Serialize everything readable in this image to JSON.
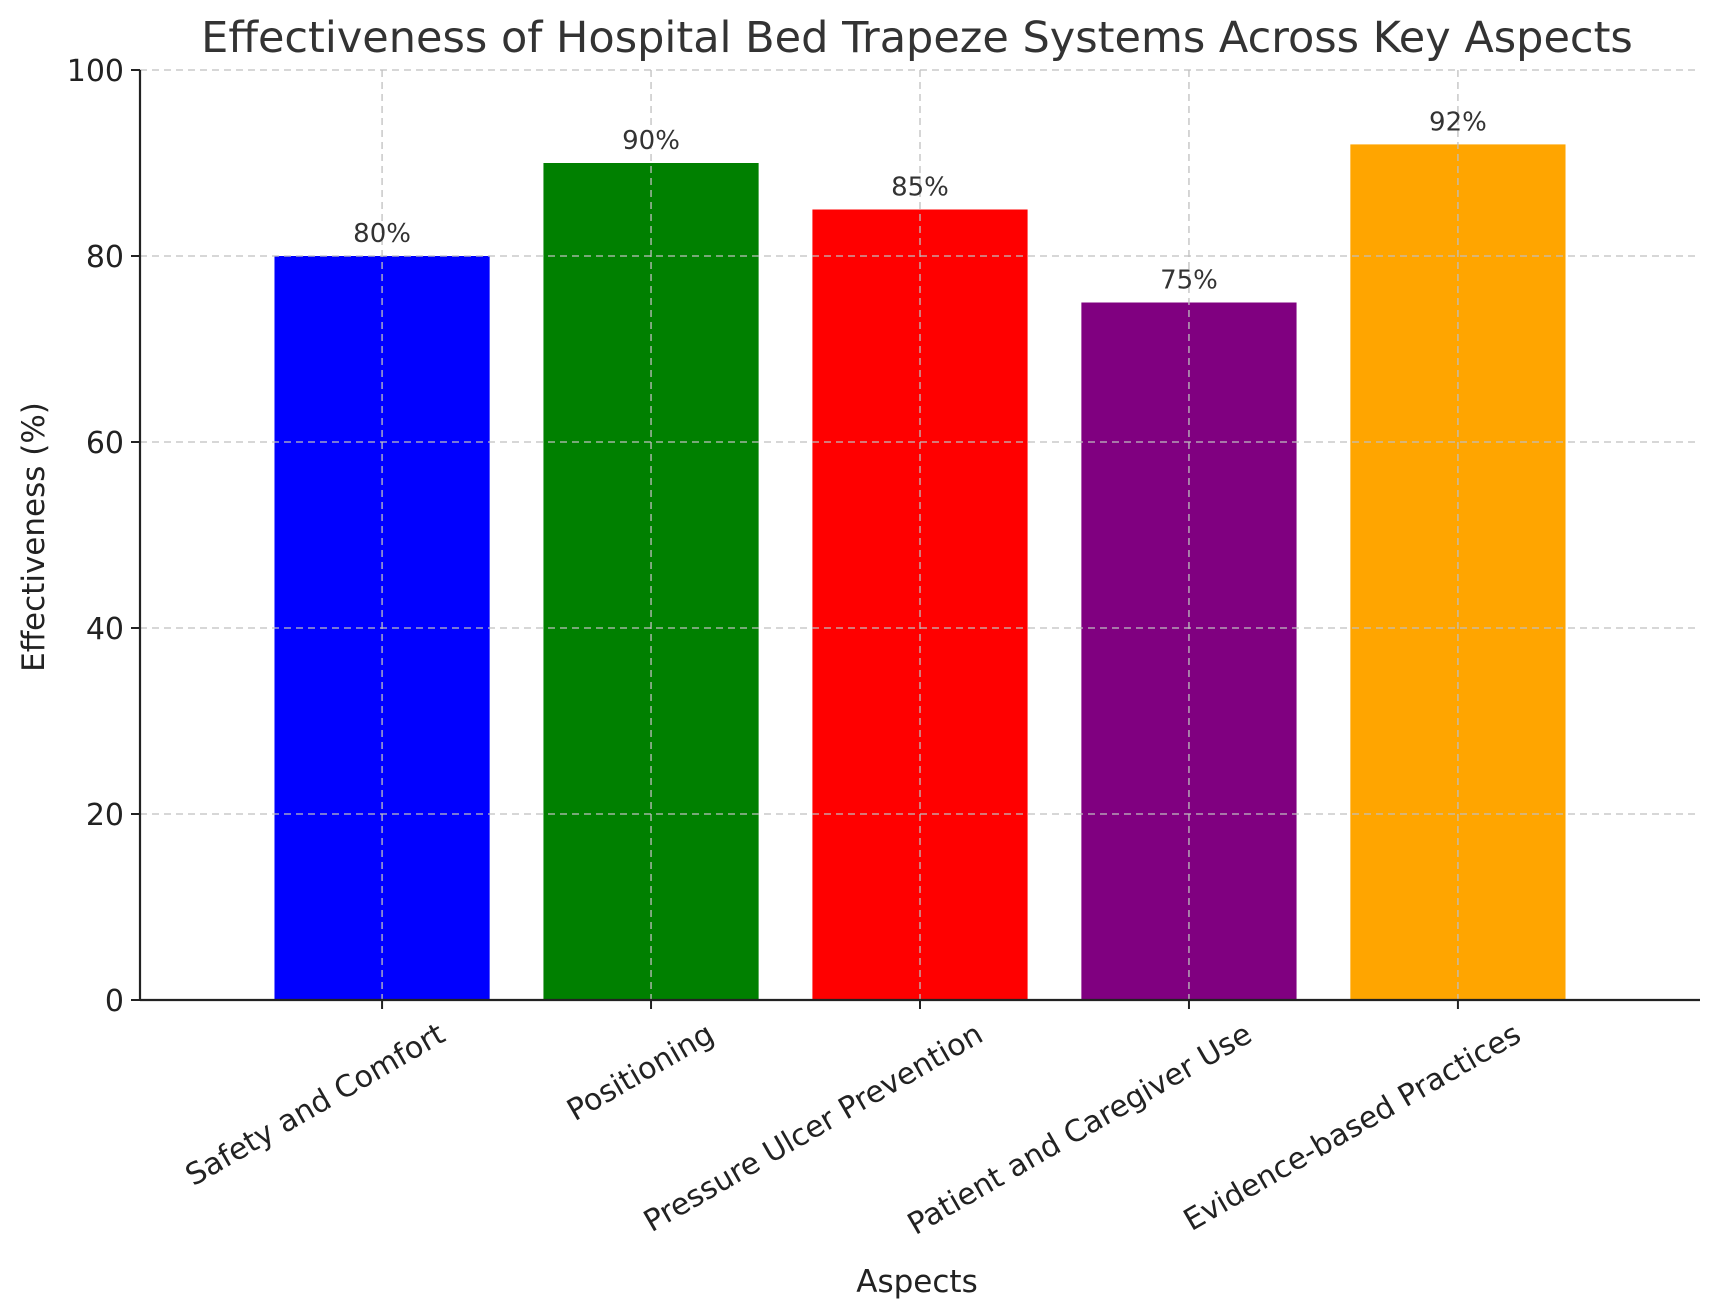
{
  "chart_data": {
    "type": "bar",
    "title": "Effectiveness of Hospital Bed Trapeze Systems Across Key Aspects",
    "xlabel": "Aspects",
    "ylabel": "Effectiveness (%)",
    "categories": [
      "Safety and Comfort",
      "Positioning",
      "Pressure Ulcer Prevention",
      "Patient and Caregiver Use",
      "Evidence-based Practices"
    ],
    "values": [
      80,
      90,
      85,
      75,
      92
    ],
    "data_labels": [
      "80%",
      "90%",
      "85%",
      "75%",
      "92%"
    ],
    "colors": [
      "#0000ff",
      "#008000",
      "#ff0000",
      "#800080",
      "#ffa500"
    ],
    "ylim": [
      0,
      100
    ],
    "yticks": [
      0,
      20,
      40,
      60,
      80,
      100
    ],
    "ytick_labels": [
      "0",
      "20",
      "40",
      "60",
      "80",
      "100"
    ],
    "grid": true,
    "legend": "none"
  }
}
